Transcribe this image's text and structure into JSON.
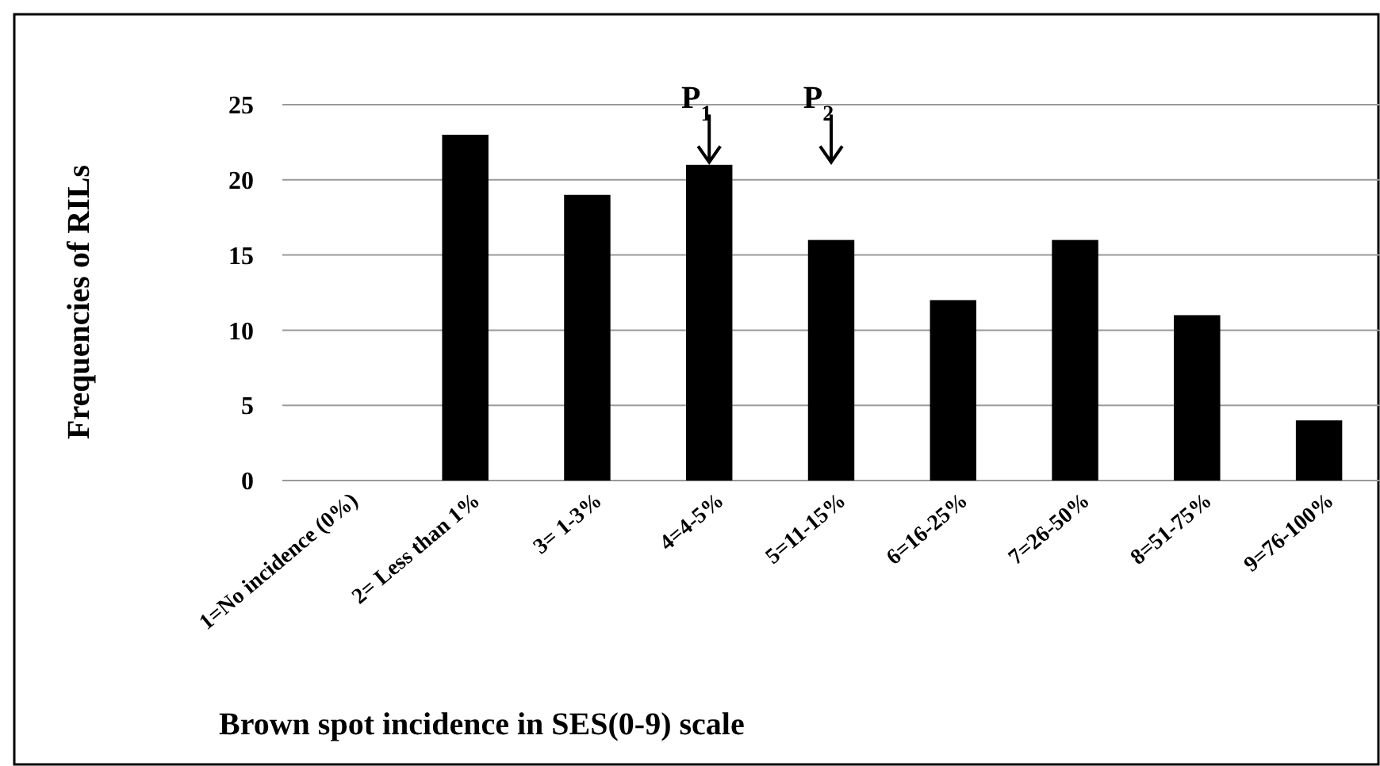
{
  "chart_data": {
    "type": "bar",
    "xlabel": "Brown spot incidence in SES(0-9) scale",
    "ylabel": "Frequencies of RILs",
    "categories": [
      "1=No incidence (0%)",
      "2= Less than 1%",
      "3= 1-3%",
      "4=4-5%",
      "5=11-15%",
      "6=16-25%",
      "7=26-50%",
      "8=51-75%",
      "9=76-100%"
    ],
    "values": [
      0,
      23,
      19,
      21,
      16,
      12,
      16,
      11,
      4
    ],
    "color": "#000000",
    "ylim": [
      0,
      25
    ],
    "yticks": [
      0,
      5,
      10,
      15,
      20,
      25
    ],
    "grid": "y",
    "annotations": [
      "P$_{1}$",
      "P$_{2}$"
    ]
  }
}
